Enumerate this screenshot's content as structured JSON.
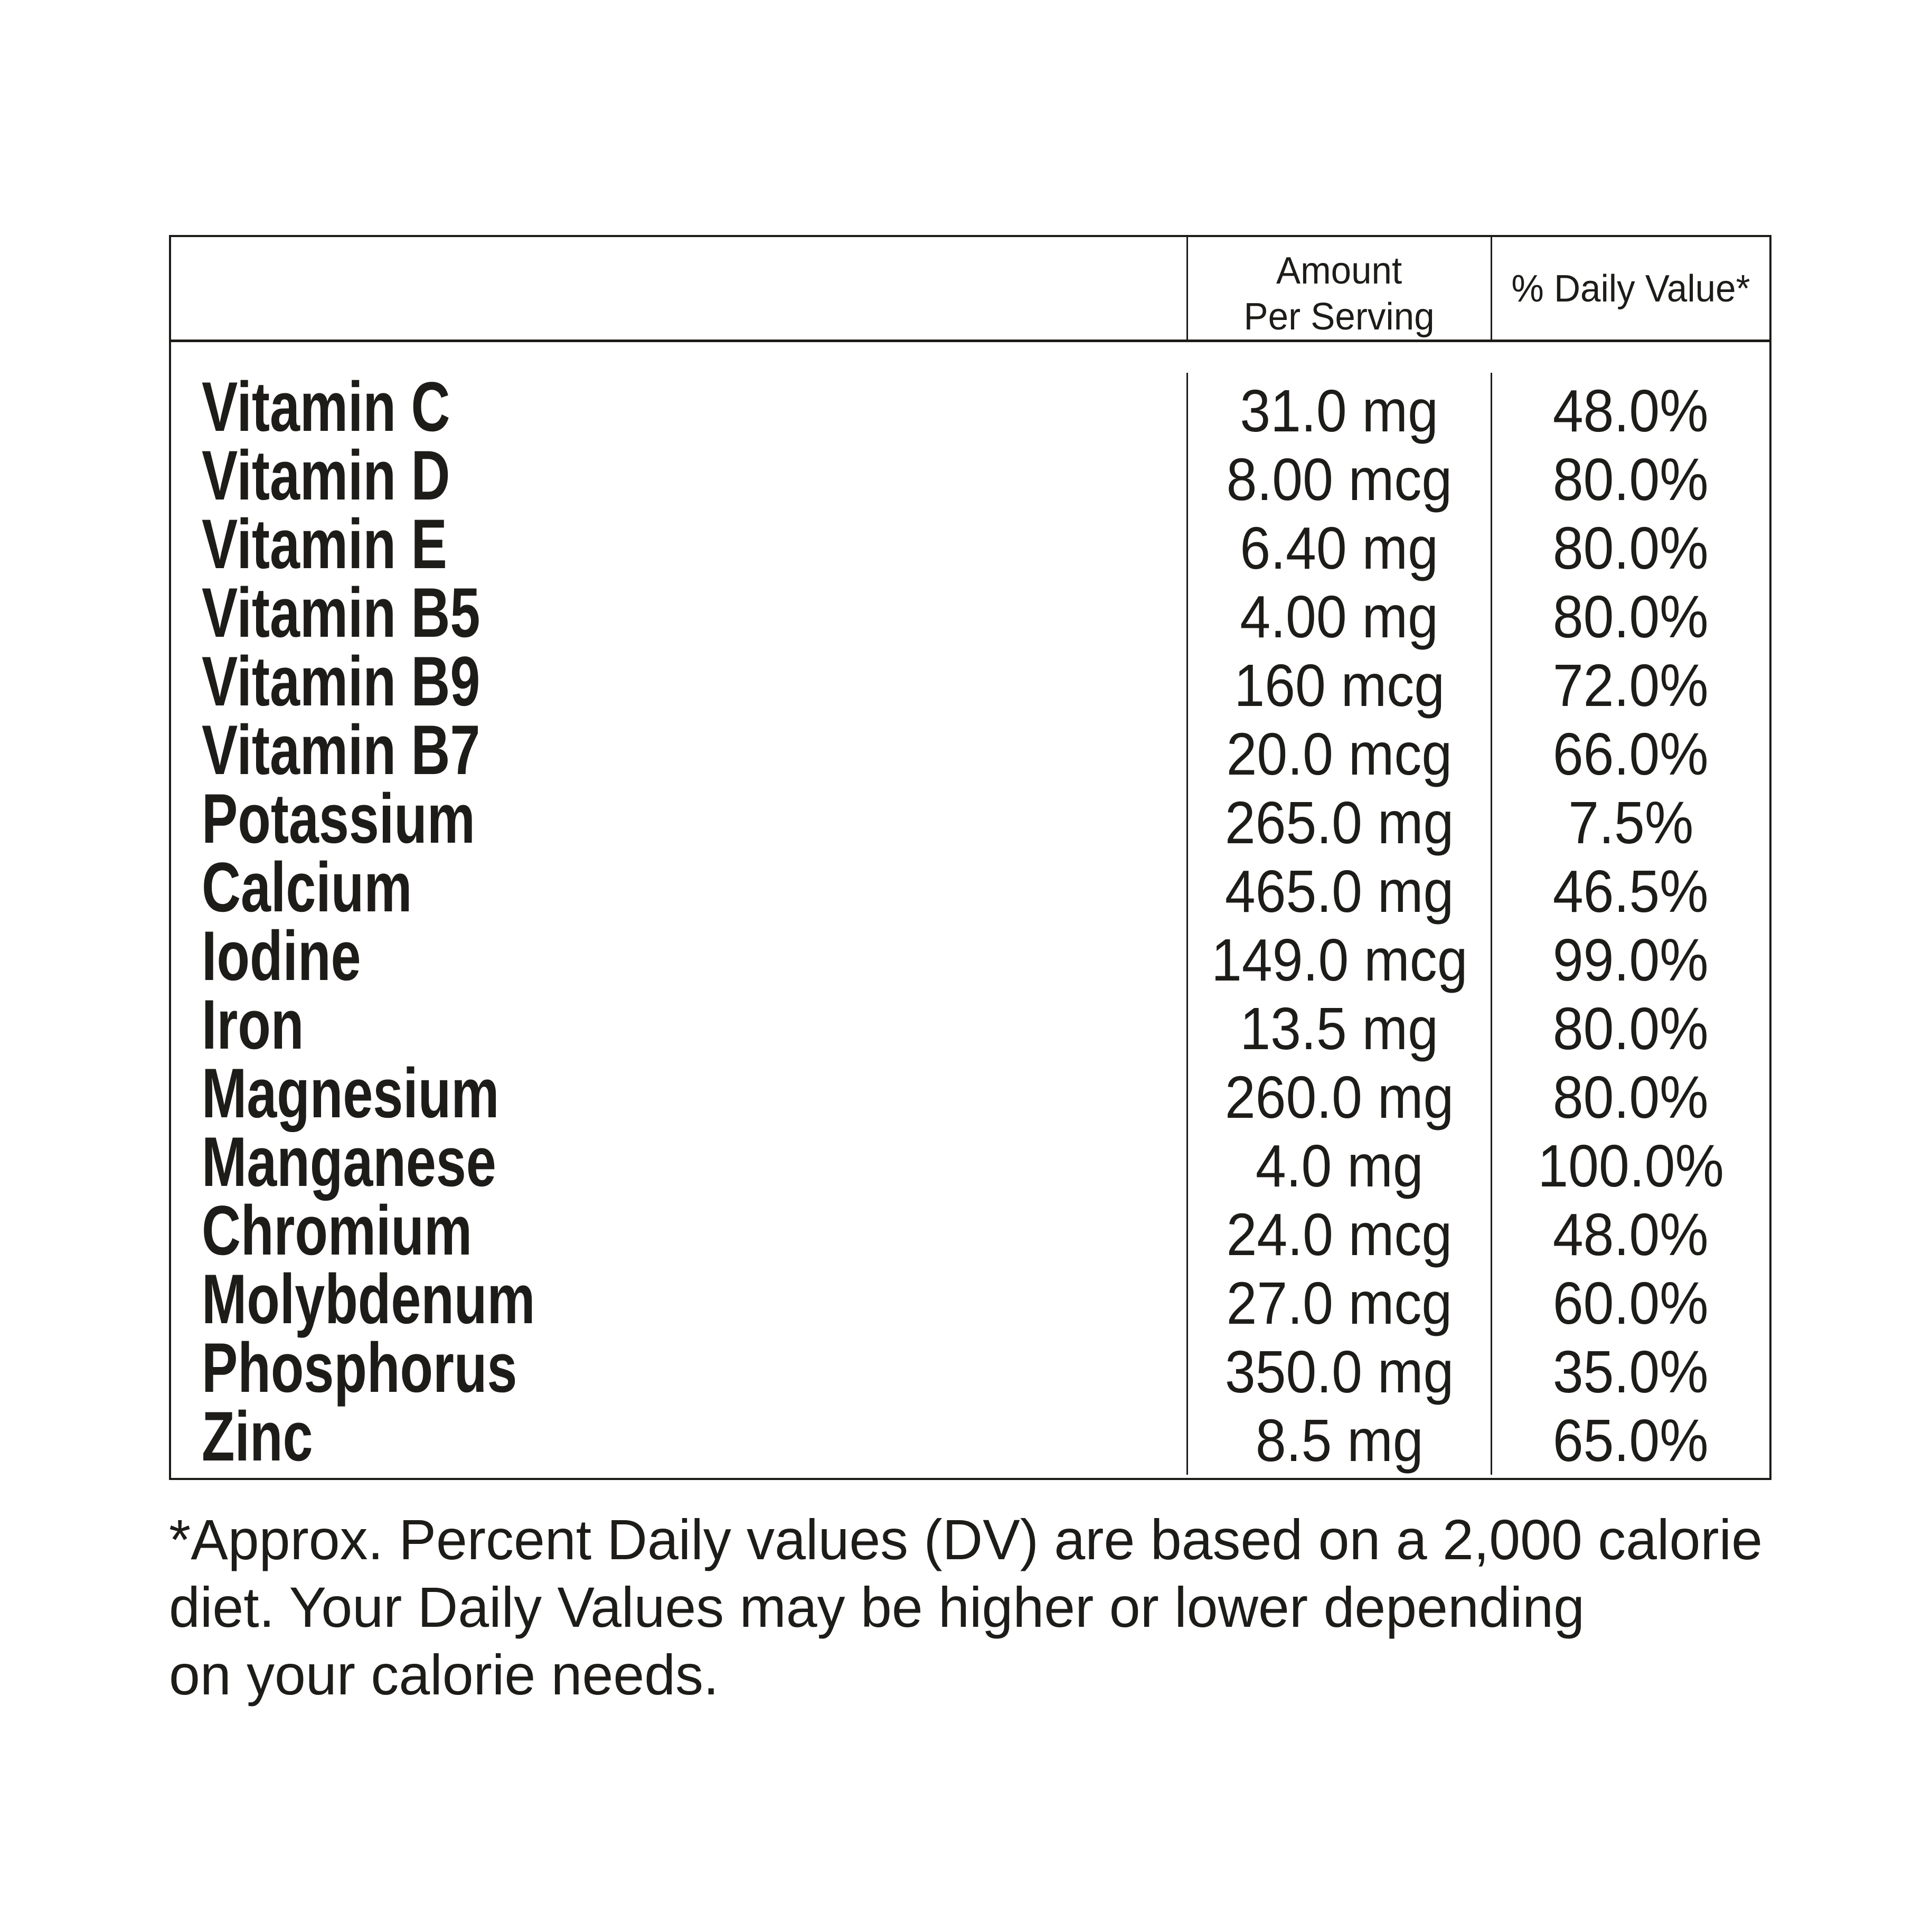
{
  "page": {
    "background_color": "#ffffff",
    "text_color": "#1d1c18",
    "line_color": "#1d1b17"
  },
  "table": {
    "header": {
      "amount_line1": "Amount",
      "amount_line2": "Per Serving",
      "daily_value": "% Daily Value*"
    },
    "rows": [
      {
        "name": "Vitamin C",
        "amount": "31.0 mg",
        "dv": "48.0%"
      },
      {
        "name": "Vitamin D",
        "amount": "8.00 mcg",
        "dv": "80.0%"
      },
      {
        "name": "Vitamin E",
        "amount": "6.40 mg",
        "dv": "80.0%"
      },
      {
        "name": "Vitamin B5",
        "amount": "4.00 mg",
        "dv": "80.0%"
      },
      {
        "name": "Vitamin B9",
        "amount": "160 mcg",
        "dv": "72.0%"
      },
      {
        "name": "Vitamin B7",
        "amount": "20.0 mcg",
        "dv": "66.0%"
      },
      {
        "name": "Potassium",
        "amount": "265.0 mg",
        "dv": "7.5%"
      },
      {
        "name": "Calcium",
        "amount": "465.0 mg",
        "dv": "46.5%"
      },
      {
        "name": "Iodine",
        "amount": "149.0 mcg",
        "dv": "99.0%"
      },
      {
        "name": "Iron",
        "amount": "13.5 mg",
        "dv": "80.0%"
      },
      {
        "name": "Magnesium",
        "amount": "260.0 mg",
        "dv": "80.0%"
      },
      {
        "name": "Manganese",
        "amount": "4.0 mg",
        "dv": "100.0%"
      },
      {
        "name": "Chromium",
        "amount": "24.0 mcg",
        "dv": "48.0%"
      },
      {
        "name": "Molybdenum",
        "amount": "27.0 mcg",
        "dv": "60.0%"
      },
      {
        "name": "Phosphorus",
        "amount": "350.0 mg",
        "dv": "35.0%"
      },
      {
        "name": "Zinc",
        "amount": "8.5 mg",
        "dv": "65.0%"
      }
    ]
  },
  "footnote": {
    "lines": [
      "*Approx. Percent Daily values (DV) are based on a 2,000 calorie",
      "diet. Your Daily Values may be higher or lower depending",
      "on your calorie needs."
    ]
  }
}
